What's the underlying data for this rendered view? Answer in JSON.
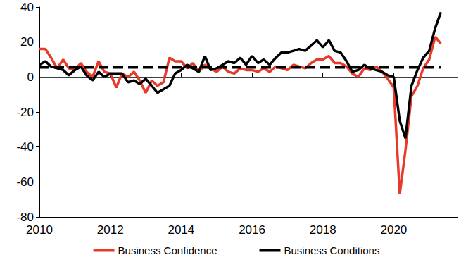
{
  "chart_data": {
    "type": "line",
    "x": [
      2010,
      2010.17,
      2010.33,
      2010.5,
      2010.67,
      2010.83,
      2011,
      2011.17,
      2011.33,
      2011.5,
      2011.67,
      2011.83,
      2012,
      2012.17,
      2012.33,
      2012.5,
      2012.67,
      2012.83,
      2013,
      2013.17,
      2013.33,
      2013.5,
      2013.67,
      2013.83,
      2014,
      2014.17,
      2014.33,
      2014.5,
      2014.67,
      2014.83,
      2015,
      2015.17,
      2015.33,
      2015.5,
      2015.67,
      2015.83,
      2016,
      2016.17,
      2016.33,
      2016.5,
      2016.67,
      2016.83,
      2017,
      2017.17,
      2017.33,
      2017.5,
      2017.67,
      2017.83,
      2018,
      2018.17,
      2018.33,
      2018.5,
      2018.67,
      2018.83,
      2019,
      2019.17,
      2019.33,
      2019.5,
      2019.67,
      2019.83,
      2020,
      2020.17,
      2020.33,
      2020.5,
      2020.67,
      2020.83,
      2021,
      2021.17,
      2021.33
    ],
    "series": [
      {
        "name": "Business Confidence",
        "color": "#e8392b",
        "values": [
          16,
          16,
          11,
          5,
          10,
          5,
          4,
          8,
          3,
          0,
          9,
          3,
          2,
          -6,
          2,
          0,
          3,
          -2,
          -9,
          -2,
          -5,
          -3,
          11,
          9,
          9,
          5,
          8,
          3,
          7,
          5,
          3,
          6,
          3,
          2,
          5,
          4,
          4,
          3,
          5,
          3,
          6,
          5,
          4,
          7,
          6,
          5,
          8,
          10,
          10,
          12,
          8,
          8,
          6,
          2,
          0,
          5,
          4,
          6,
          3,
          -1,
          -6,
          -67,
          -42,
          -11,
          -5,
          5,
          10,
          23,
          19
        ]
      },
      {
        "name": "Business Conditions",
        "color": "#000000",
        "values": [
          7,
          9,
          6,
          5,
          4,
          1,
          4,
          6,
          1,
          -2,
          3,
          0,
          2,
          2,
          2,
          -3,
          -2,
          -4,
          -1,
          -5,
          -9,
          -7,
          -5,
          2,
          4,
          7,
          5,
          3,
          12,
          4,
          5,
          7,
          9,
          8,
          11,
          7,
          12,
          8,
          10,
          7,
          11,
          14,
          14,
          15,
          16,
          15,
          18,
          21,
          17,
          21,
          15,
          14,
          9,
          3,
          4,
          7,
          5,
          4,
          3,
          1,
          0,
          -25,
          -35,
          -5,
          4,
          11,
          15,
          28,
          37
        ]
      },
      {
        "color": "#000000",
        "line_style": "dashed",
        "x": [
          2010,
          2021.33
        ],
        "values": [
          5.5,
          5.5
        ]
      }
    ],
    "xlim": [
      2010,
      2021.8
    ],
    "xticks": [
      2010,
      2012,
      2014,
      2016,
      2018,
      2020
    ],
    "ylim": [
      -80,
      40
    ],
    "yticks": [
      -80,
      -60,
      -40,
      -20,
      0,
      20,
      40
    ],
    "grid": false,
    "legend": "bottom"
  }
}
